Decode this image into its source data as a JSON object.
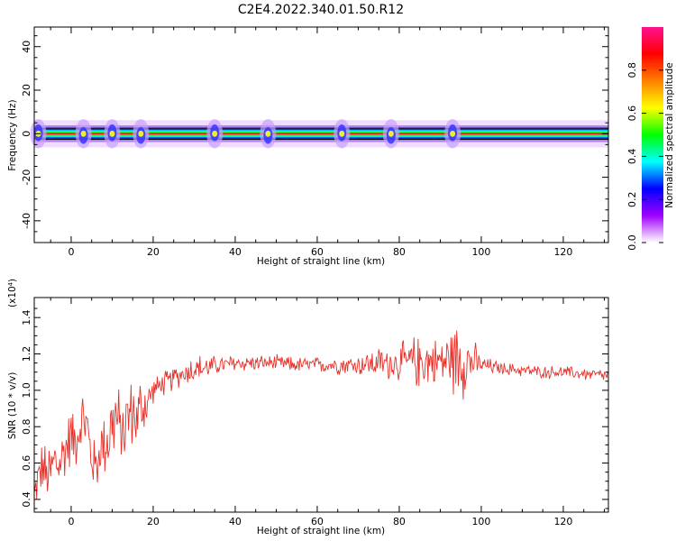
{
  "figure": {
    "title": "C2E4.2022.340.01.50.R12"
  },
  "chart_data": [
    {
      "type": "heatmap",
      "xlabel": "Height of straight line (km)",
      "ylabel": "Frequency (Hz)",
      "xlim": [
        -9,
        131
      ],
      "ylim": [
        -50,
        49
      ],
      "xticks": [
        "0",
        "20",
        "40",
        "60",
        "80",
        "100",
        "120"
      ],
      "yticks": [
        "-40",
        "-20",
        "0",
        "20",
        "40"
      ],
      "description_band": {
        "center_hz": 0,
        "half_width_hz": 1.2
      },
      "colorbar": {
        "label": "Normalized spectral amplitude",
        "range": [
          0,
          1
        ],
        "ticks": [
          "0.0",
          "0.2",
          "0.4",
          "0.6",
          "0.8"
        ],
        "colors": [
          "#ffffff",
          "#a000ff",
          "#0000ff",
          "#00ffff",
          "#00ff00",
          "#ffff00",
          "#ff8000",
          "#ff0000",
          "#ff1090"
        ]
      },
      "disturbances_km": [
        -8,
        3,
        10,
        17,
        35,
        48,
        66,
        78,
        93
      ]
    },
    {
      "type": "line",
      "xlabel": "Height of straight line (km)",
      "ylabel": "SNR (10 * v/v)",
      "y_multiplier": "(x10⁴)",
      "xlim": [
        -9,
        131
      ],
      "ylim": [
        0.33,
        1.51
      ],
      "xticks": [
        "0",
        "20",
        "40",
        "60",
        "80",
        "100",
        "120"
      ],
      "yticks": [
        "0.4",
        "0.6",
        "0.8",
        "1.0",
        "1.2",
        "1.4"
      ],
      "series": [
        {
          "color": "#e8312a",
          "x": [
            -9,
            -8,
            -7,
            -6,
            -5,
            -4,
            -3,
            -2,
            -1,
            0,
            1,
            2,
            3,
            4,
            5,
            6,
            7,
            8,
            9,
            10,
            11,
            12,
            13,
            14,
            15,
            16,
            17,
            18,
            19,
            20,
            22,
            24,
            26,
            28,
            30,
            32,
            34,
            36,
            38,
            40,
            45,
            50,
            55,
            60,
            65,
            70,
            75,
            80,
            85,
            90,
            95,
            100,
            105,
            110,
            115,
            120,
            125,
            131
          ],
          "y": [
            0.42,
            0.52,
            0.58,
            0.52,
            0.55,
            0.62,
            0.58,
            0.65,
            0.7,
            0.75,
            0.72,
            0.8,
            0.85,
            0.78,
            0.62,
            0.58,
            0.66,
            0.72,
            0.72,
            0.82,
            0.85,
            0.77,
            0.8,
            0.86,
            0.88,
            0.84,
            0.9,
            0.92,
            0.95,
            1.0,
            1.03,
            1.05,
            1.08,
            1.1,
            1.12,
            1.12,
            1.13,
            1.14,
            1.14,
            1.15,
            1.15,
            1.15,
            1.14,
            1.14,
            1.14,
            1.14,
            1.15,
            1.15,
            1.16,
            1.16,
            1.18,
            1.14,
            1.12,
            1.11,
            1.1,
            1.1,
            1.09,
            1.08
          ],
          "envelope": [
            0.1,
            0.15,
            0.18,
            0.2,
            0.2,
            0.2,
            0.2,
            0.2,
            0.2,
            0.2,
            0.18,
            0.18,
            0.2,
            0.22,
            0.18,
            0.16,
            0.2,
            0.22,
            0.22,
            0.3,
            0.28,
            0.22,
            0.22,
            0.24,
            0.22,
            0.2,
            0.24,
            0.22,
            0.14,
            0.08,
            0.08,
            0.08,
            0.08,
            0.08,
            0.1,
            0.09,
            0.07,
            0.06,
            0.06,
            0.06,
            0.05,
            0.05,
            0.05,
            0.05,
            0.06,
            0.07,
            0.1,
            0.12,
            0.18,
            0.14,
            0.28,
            0.06,
            0.04,
            0.04,
            0.04,
            0.04,
            0.04,
            0.04
          ]
        }
      ]
    }
  ]
}
